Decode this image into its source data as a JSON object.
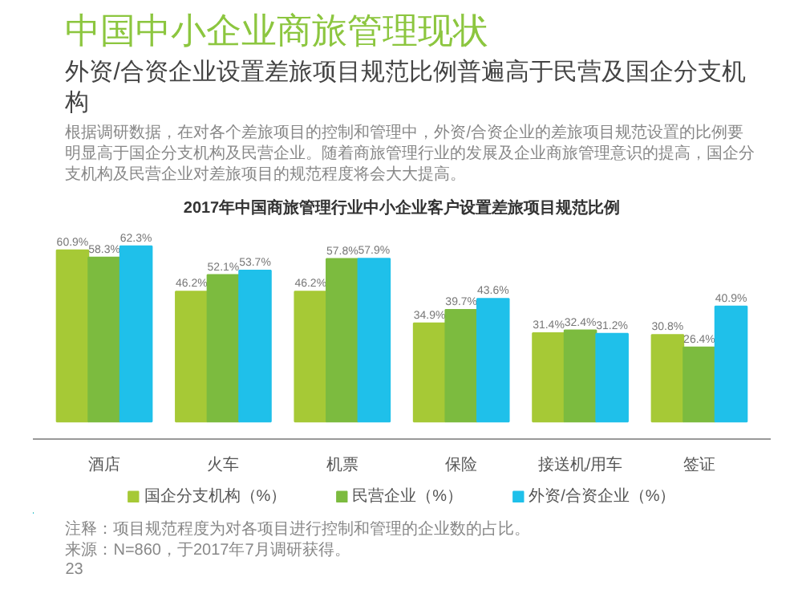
{
  "chart_data": {
    "type": "bar",
    "title": "中国中小企业商旅管理现状",
    "subtitle": "外资/合资企业设置差旅项目规范比例普遍高于民营及国企分支机构",
    "annotations": [
      "根据调研数据，在对各个差旅项目的控制和管理中，外资/合资企业的差旅项目规范设置的比例要明显高于国企分支机构及民营企业。随着商旅管理行业的发展及企业商旅管理意识的提高，国企分支机构及民营企业对差旅项目的规范程度将会大大提高。",
      "2017年中国商旅管理行业中小企业客户设置差旅项目规范比例",
      "注释：项目规范程度为对各项目进行控制和管理的企业数的占比。",
      "来源：N=860，于2017年7月调研获得。",
      "23"
    ],
    "categories": [
      "酒店",
      "火车",
      "机票",
      "保险",
      "接送机/用车",
      "签证"
    ],
    "series": [
      {
        "name": "国企分支机构（%）",
        "color": "#a6c936",
        "values": [
          60.9,
          46.2,
          46.2,
          34.9,
          31.4,
          30.8
        ],
        "value_labels": [
          "60.9%",
          "46.2%",
          "46.2%",
          "34.9%",
          "31.4%",
          "30.8%"
        ]
      },
      {
        "name": "民营企业（%）",
        "color": "#7cbb3f",
        "values": [
          58.3,
          52.1,
          57.8,
          39.7,
          32.4,
          26.4
        ],
        "value_labels": [
          "58.3%",
          "52.1%",
          "57.8%",
          "39.7%",
          "32.4%",
          "26.4%"
        ]
      },
      {
        "name": "外资/合资企业（%）",
        "color": "#1fc0ea",
        "values": [
          62.3,
          53.7,
          57.9,
          43.6,
          31.2,
          40.9
        ],
        "value_labels": [
          "62.3%",
          "53.7%",
          "57.9%",
          "43.6%",
          "31.2%",
          "40.9%"
        ]
      }
    ],
    "grid": false,
    "legend": "bottom",
    "tick_labels": "x"
  }
}
